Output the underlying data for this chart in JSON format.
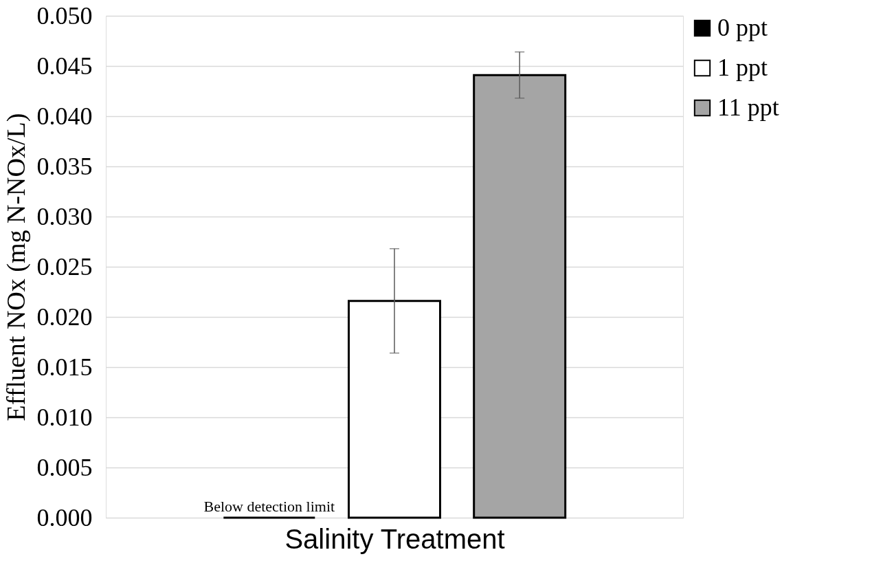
{
  "chart_data": {
    "type": "bar",
    "xlabel": "Salinity Treatment",
    "ylabel": "Effluent NOx (mg N-NOx/L)",
    "categories": [
      null
    ],
    "series": [
      {
        "name": "0 ppt",
        "color": "#000000",
        "values": [
          0.0
        ],
        "errors": [
          null
        ]
      },
      {
        "name": "1 ppt",
        "color": "#ffffff",
        "values": [
          0.0216
        ],
        "errors": [
          0.0052
        ]
      },
      {
        "name": "11 ppt",
        "color": "#a5a5a5",
        "values": [
          0.0441
        ],
        "errors": [
          0.0023
        ]
      }
    ],
    "annotations": [
      "Below detection limit"
    ],
    "ylim": [
      0,
      0.05
    ],
    "yticks": [
      {
        "value": 0,
        "label": "0.000"
      },
      0.005,
      {
        "value": 0.01,
        "label": "0.010"
      },
      0.015,
      {
        "value": 0.02,
        "label": "0.020"
      },
      0.025,
      {
        "value": 0.03,
        "label": "0.030"
      },
      0.035,
      {
        "value": 0.04,
        "label": "0.040"
      },
      0.045,
      {
        "value": 0.05,
        "label": "0.050"
      }
    ],
    "grid": "y",
    "legend": "right"
  }
}
